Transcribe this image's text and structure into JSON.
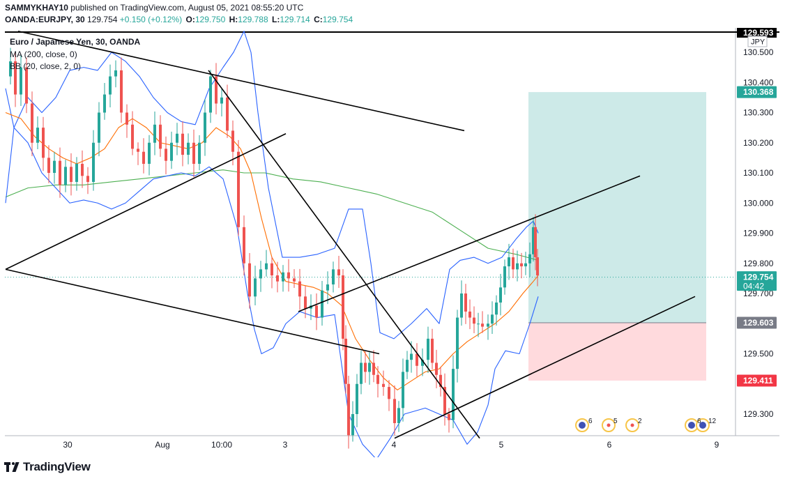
{
  "header": {
    "publisher": "SAMMYKHAY10",
    "published_text": "published on TradingView.com, August 05, 2021 08:55:20 UTC",
    "symbol": "OANDA:EURJPY, 30",
    "last": "129.754",
    "change": "+0.150 (+0.12%)",
    "o_label": "O:",
    "o": "129.750",
    "h_label": "H:",
    "h": "129.788",
    "l_label": "L:",
    "l": "129.714",
    "c_label": "C:",
    "c": "129.754"
  },
  "legend": {
    "title": "Euro / Japanese Yen, 30, OANDA",
    "ma": "MA (200, close, 0)",
    "bb": "BB (20, close, 2, 0)"
  },
  "branding": {
    "name": "TradingView"
  },
  "colors": {
    "up": "#26a69a",
    "down": "#ef5350",
    "ma200": "#4caf50",
    "bb_basis": "#ff6d00",
    "bb_bands": "#2962ff",
    "profit": "#b2dfdb",
    "loss": "#ffcdd2",
    "trendline": "#000000",
    "stop_label": "#787b86",
    "last_price": "#26a69a"
  },
  "chart_data": {
    "type": "candlestick",
    "currency": "JPY",
    "ylim": [
      129.22,
      130.58
    ],
    "y_ticks": [
      "130.500",
      "130.400",
      "130.300",
      "130.200",
      "130.100",
      "130.000",
      "129.900",
      "129.800",
      "129.700",
      "129.500",
      "129.300"
    ],
    "x_ticks": [
      {
        "label": "30",
        "x": 97
      },
      {
        "label": "Aug",
        "x": 233
      },
      {
        "label": "10:00",
        "x": 318
      },
      {
        "label": "3",
        "x": 409
      },
      {
        "label": "4",
        "x": 565
      },
      {
        "label": "5",
        "x": 719
      },
      {
        "label": "6",
        "x": 874
      },
      {
        "label": "9",
        "x": 1028
      }
    ],
    "price_labels": {
      "top_line": "129.593",
      "take_profit": "130.368",
      "last_price": "129.754",
      "countdown": "04:42",
      "entry": "129.603",
      "stop_loss": "129.411"
    },
    "position": {
      "target": 130.368,
      "entry": 129.603,
      "stop": 129.411
    },
    "path": [
      [
        8,
        130.42
      ],
      [
        15,
        130.47
      ],
      [
        22,
        130.36
      ],
      [
        30,
        130.45
      ],
      [
        38,
        130.33
      ],
      [
        46,
        130.2
      ],
      [
        54,
        130.25
      ],
      [
        62,
        130.15
      ],
      [
        70,
        130.1
      ],
      [
        78,
        130.14
      ],
      [
        86,
        130.06
      ],
      [
        94,
        130.12
      ],
      [
        102,
        130.07
      ],
      [
        110,
        130.13
      ],
      [
        118,
        130.09
      ],
      [
        126,
        130.07
      ],
      [
        134,
        130.2
      ],
      [
        142,
        130.3
      ],
      [
        150,
        130.36
      ],
      [
        158,
        130.42
      ],
      [
        166,
        130.44
      ],
      [
        174,
        130.3
      ],
      [
        182,
        130.26
      ],
      [
        190,
        130.18
      ],
      [
        198,
        130.17
      ],
      [
        206,
        130.13
      ],
      [
        214,
        130.2
      ],
      [
        222,
        130.26
      ],
      [
        230,
        130.18
      ],
      [
        238,
        130.14
      ],
      [
        246,
        130.2
      ],
      [
        254,
        130.23
      ],
      [
        262,
        130.16
      ],
      [
        270,
        130.2
      ],
      [
        278,
        130.13
      ],
      [
        286,
        130.2
      ],
      [
        294,
        130.3
      ],
      [
        302,
        130.42
      ],
      [
        310,
        130.33
      ],
      [
        318,
        130.35
      ],
      [
        326,
        130.24
      ],
      [
        334,
        130.17
      ],
      [
        342,
        129.92
      ],
      [
        350,
        129.8
      ],
      [
        358,
        129.69
      ],
      [
        366,
        129.75
      ],
      [
        374,
        129.78
      ],
      [
        382,
        129.8
      ],
      [
        390,
        129.76
      ],
      [
        398,
        129.74
      ],
      [
        406,
        129.77
      ],
      [
        414,
        129.75
      ],
      [
        422,
        129.74
      ],
      [
        430,
        129.69
      ],
      [
        438,
        129.65
      ],
      [
        446,
        129.66
      ],
      [
        454,
        129.62
      ],
      [
        462,
        129.71
      ],
      [
        470,
        129.73
      ],
      [
        478,
        129.78
      ],
      [
        486,
        129.76
      ],
      [
        492,
        129.55
      ],
      [
        496,
        129.4
      ],
      [
        500,
        129.23
      ],
      [
        506,
        129.3
      ],
      [
        512,
        129.4
      ],
      [
        518,
        129.47
      ],
      [
        524,
        129.44
      ],
      [
        530,
        129.47
      ],
      [
        536,
        129.43
      ],
      [
        542,
        129.4
      ],
      [
        550,
        129.39
      ],
      [
        558,
        129.35
      ],
      [
        566,
        129.27
      ],
      [
        572,
        129.32
      ],
      [
        578,
        129.44
      ],
      [
        584,
        129.48
      ],
      [
        590,
        129.5
      ],
      [
        598,
        129.46
      ],
      [
        606,
        129.48
      ],
      [
        614,
        129.55
      ],
      [
        620,
        129.47
      ],
      [
        626,
        129.43
      ],
      [
        632,
        129.39
      ],
      [
        638,
        129.3
      ],
      [
        644,
        129.28
      ],
      [
        650,
        129.45
      ],
      [
        656,
        129.62
      ],
      [
        662,
        129.7
      ],
      [
        668,
        129.64
      ],
      [
        674,
        129.62
      ],
      [
        680,
        129.6
      ],
      [
        686,
        129.6
      ],
      [
        692,
        129.59
      ],
      [
        700,
        129.6
      ],
      [
        706,
        129.63
      ],
      [
        712,
        129.67
      ],
      [
        718,
        129.72
      ],
      [
        724,
        129.79
      ],
      [
        730,
        129.82
      ],
      [
        736,
        129.78
      ],
      [
        742,
        129.8
      ],
      [
        748,
        129.79
      ],
      [
        754,
        129.8
      ],
      [
        760,
        129.83
      ],
      [
        765,
        129.92
      ],
      [
        768,
        129.82
      ],
      [
        771,
        129.76
      ]
    ],
    "bb_upper": [
      [
        8,
        130.0
      ],
      [
        20,
        130.25
      ],
      [
        40,
        130.35
      ],
      [
        60,
        130.3
      ],
      [
        80,
        130.35
      ],
      [
        100,
        130.44
      ],
      [
        120,
        130.45
      ],
      [
        140,
        130.44
      ],
      [
        160,
        130.5
      ],
      [
        180,
        130.47
      ],
      [
        200,
        130.42
      ],
      [
        220,
        130.35
      ],
      [
        240,
        130.3
      ],
      [
        260,
        130.27
      ],
      [
        280,
        130.26
      ],
      [
        300,
        130.38
      ],
      [
        320,
        130.45
      ],
      [
        335,
        130.5
      ],
      [
        350,
        130.57
      ],
      [
        360,
        130.5
      ],
      [
        370,
        130.3
      ],
      [
        385,
        130.05
      ],
      [
        405,
        129.82
      ],
      [
        430,
        129.82
      ],
      [
        455,
        129.83
      ],
      [
        480,
        129.85
      ],
      [
        500,
        129.98
      ],
      [
        520,
        129.98
      ],
      [
        532,
        129.8
      ],
      [
        545,
        129.57
      ],
      [
        565,
        129.55
      ],
      [
        590,
        129.6
      ],
      [
        612,
        129.65
      ],
      [
        630,
        129.6
      ],
      [
        645,
        129.78
      ],
      [
        660,
        129.81
      ],
      [
        680,
        129.82
      ],
      [
        700,
        129.8
      ],
      [
        720,
        129.82
      ],
      [
        740,
        129.88
      ],
      [
        755,
        129.92
      ],
      [
        765,
        129.94
      ],
      [
        772,
        129.9
      ]
    ],
    "bb_lower": [
      [
        8,
        130.38
      ],
      [
        20,
        130.25
      ],
      [
        40,
        130.2
      ],
      [
        60,
        130.1
      ],
      [
        80,
        130.05
      ],
      [
        100,
        130.0
      ],
      [
        120,
        130.01
      ],
      [
        140,
        130.0
      ],
      [
        160,
        129.98
      ],
      [
        180,
        130.0
      ],
      [
        200,
        130.04
      ],
      [
        220,
        130.08
      ],
      [
        240,
        130.09
      ],
      [
        260,
        130.1
      ],
      [
        280,
        130.09
      ],
      [
        300,
        130.12
      ],
      [
        320,
        130.08
      ],
      [
        340,
        129.92
      ],
      [
        355,
        129.7
      ],
      [
        365,
        129.58
      ],
      [
        375,
        129.5
      ],
      [
        392,
        129.52
      ],
      [
        410,
        129.6
      ],
      [
        430,
        129.64
      ],
      [
        455,
        129.62
      ],
      [
        480,
        129.63
      ],
      [
        500,
        129.3
      ],
      [
        520,
        129.2
      ],
      [
        540,
        129.15
      ],
      [
        560,
        129.22
      ],
      [
        580,
        129.3
      ],
      [
        610,
        129.32
      ],
      [
        630,
        129.3
      ],
      [
        650,
        129.28
      ],
      [
        670,
        129.2
      ],
      [
        685,
        129.24
      ],
      [
        700,
        129.33
      ],
      [
        710,
        129.45
      ],
      [
        725,
        129.51
      ],
      [
        745,
        129.5
      ],
      [
        760,
        129.6
      ],
      [
        772,
        129.69
      ]
    ],
    "bb_basis": [
      [
        8,
        130.3
      ],
      [
        30,
        130.28
      ],
      [
        50,
        130.22
      ],
      [
        70,
        130.18
      ],
      [
        90,
        130.15
      ],
      [
        110,
        130.13
      ],
      [
        130,
        130.15
      ],
      [
        150,
        130.18
      ],
      [
        170,
        130.25
      ],
      [
        190,
        130.28
      ],
      [
        210,
        130.25
      ],
      [
        230,
        130.2
      ],
      [
        250,
        130.19
      ],
      [
        270,
        130.18
      ],
      [
        290,
        130.2
      ],
      [
        310,
        130.25
      ],
      [
        330,
        130.22
      ],
      [
        345,
        130.18
      ],
      [
        360,
        130.1
      ],
      [
        375,
        129.95
      ],
      [
        390,
        129.82
      ],
      [
        410,
        129.74
      ],
      [
        430,
        129.73
      ],
      [
        450,
        129.72
      ],
      [
        470,
        129.7
      ],
      [
        490,
        129.66
      ],
      [
        510,
        129.55
      ],
      [
        530,
        129.48
      ],
      [
        550,
        129.42
      ],
      [
        570,
        129.38
      ],
      [
        590,
        129.41
      ],
      [
        610,
        129.44
      ],
      [
        630,
        129.45
      ],
      [
        650,
        129.5
      ],
      [
        670,
        129.54
      ],
      [
        690,
        129.57
      ],
      [
        710,
        129.6
      ],
      [
        730,
        129.64
      ],
      [
        750,
        129.7
      ],
      [
        765,
        129.74
      ],
      [
        772,
        129.76
      ]
    ],
    "ma200": [
      [
        8,
        130.02
      ],
      [
        40,
        130.05
      ],
      [
        80,
        130.06
      ],
      [
        120,
        130.06
      ],
      [
        160,
        130.07
      ],
      [
        200,
        130.08
      ],
      [
        240,
        130.09
      ],
      [
        280,
        130.1
      ],
      [
        320,
        130.11
      ],
      [
        350,
        130.1
      ],
      [
        380,
        130.1
      ],
      [
        420,
        130.08
      ],
      [
        460,
        130.07
      ],
      [
        500,
        130.05
      ],
      [
        540,
        130.03
      ],
      [
        580,
        130.0
      ],
      [
        620,
        129.97
      ],
      [
        660,
        129.91
      ],
      [
        700,
        129.85
      ],
      [
        740,
        129.83
      ],
      [
        772,
        129.81
      ]
    ],
    "trendlines": [
      [
        [
          26,
          130.57
        ],
        [
          666,
          130.24
        ]
      ],
      [
        [
          8,
          129.78
        ],
        [
          410,
          130.23
        ]
      ],
      [
        [
          8,
          129.78
        ],
        [
          544,
          129.5
        ]
      ],
      [
        [
          299,
          130.44
        ],
        [
          688,
          129.22
        ]
      ],
      [
        [
          428,
          129.64
        ],
        [
          918,
          130.09
        ]
      ],
      [
        [
          566,
          129.22
        ],
        [
          997,
          129.69
        ]
      ]
    ]
  }
}
